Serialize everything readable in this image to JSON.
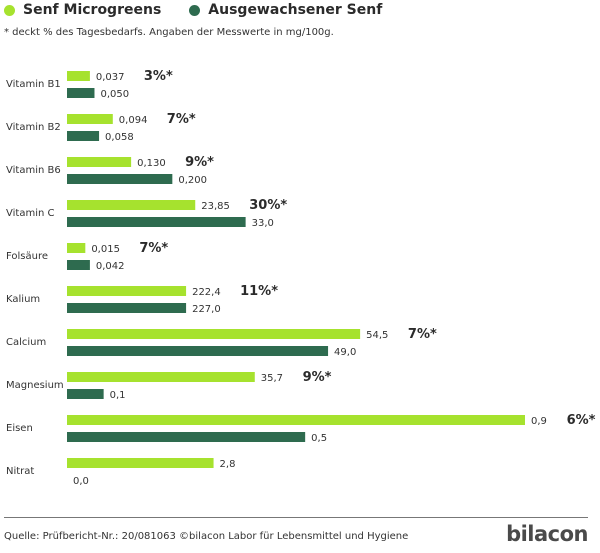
{
  "legend": {
    "items": [
      {
        "label": "Senf Microgreens",
        "color": "#a6e22e"
      },
      {
        "label": "Ausgewachsener Senf",
        "color": "#2e6b4f"
      }
    ]
  },
  "note": "* deckt % des Tagesbedarfs. Angaben der Messwerte in mg/100g.",
  "source": "Quelle: Prüfbericht-Nr.: 20/081063 ©bilacon Labor für Lebensmittel und Hygiene",
  "brand": "bilacon",
  "chart_data": {
    "type": "bar",
    "orientation": "horizontal",
    "categories": [
      "Vitamin B1",
      "Vitamin B2",
      "Vitamin B6",
      "Vitamin C",
      "Folsäure",
      "Kalium",
      "Calcium",
      "Magnesium",
      "Eisen",
      "Nitrat"
    ],
    "series": [
      {
        "name": "Senf Microgreens",
        "color": "#a6e22e",
        "labels": [
          "0,037",
          "0,094",
          "0,130",
          "23,85",
          "0,015",
          "222,4",
          "54,5",
          "35,7",
          "0,9",
          "2,8"
        ],
        "bar_fraction": [
          0.05,
          0.1,
          0.14,
          0.28,
          0.04,
          0.26,
          0.64,
          0.41,
          1.0,
          0.32
        ]
      },
      {
        "name": "Ausgewachsener Senf",
        "color": "#2e6b4f",
        "labels": [
          "0,050",
          "0,058",
          "0,200",
          "33,0",
          "0,042",
          "227,0",
          "49,0",
          "0,1",
          "0,5",
          "0,0"
        ],
        "bar_fraction": [
          0.06,
          0.07,
          0.23,
          0.39,
          0.05,
          0.26,
          0.57,
          0.08,
          0.52,
          0.0
        ]
      }
    ],
    "daily_value_labels": [
      "3%*",
      "7%*",
      "9%*",
      "30%*",
      "7%*",
      "11%*",
      "7%*",
      "9%*",
      "6%*",
      ""
    ]
  }
}
